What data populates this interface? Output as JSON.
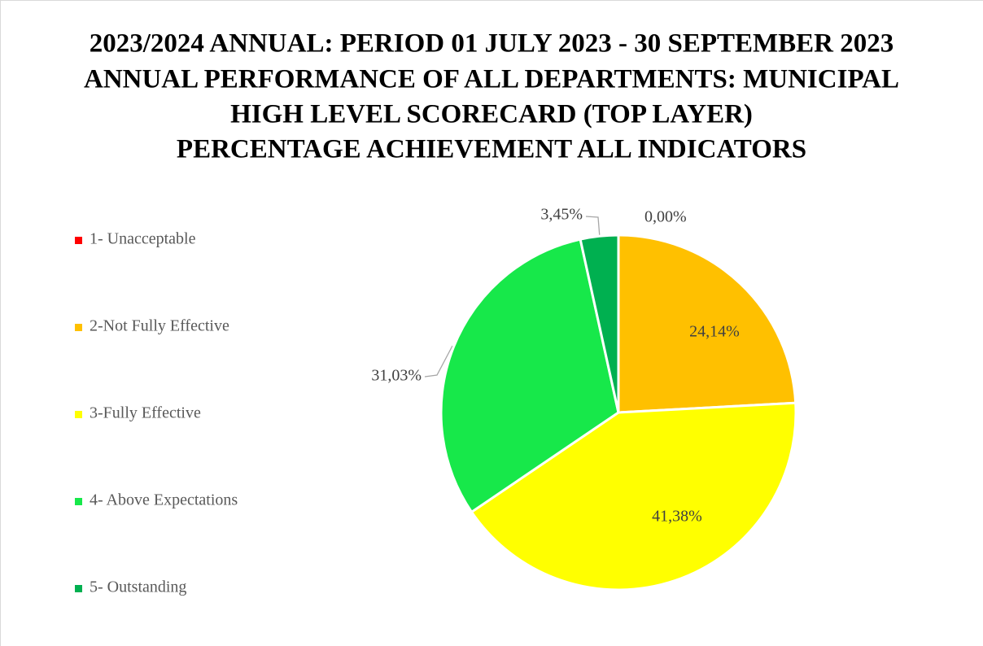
{
  "chart_data": {
    "type": "pie",
    "title": [
      "2023/2024 ANNUAL: PERIOD 01 JULY 2023 - 30 SEPTEMBER 2023",
      "ANNUAL PERFORMANCE OF ALL DEPARTMENTS: MUNICIPAL",
      "HIGH LEVEL SCORECARD (TOP LAYER)",
      "PERCENTAGE ACHIEVEMENT ALL INDICATORS"
    ],
    "categories": [
      "1- Unacceptable",
      "2-Not Fully Effective",
      "3-Fully Effective",
      "4- Above Expectations",
      "5- Outstanding"
    ],
    "values": [
      0,
      24.14,
      41.38,
      31.03,
      3.45
    ],
    "value_labels": [
      "0,00%",
      "24,14%",
      "41,38%",
      "31,03%",
      "3,45%"
    ],
    "colors": [
      "#ff0000",
      "#ffc000",
      "#ffff00",
      "#17e84a",
      "#00b050"
    ],
    "legend": "left"
  }
}
